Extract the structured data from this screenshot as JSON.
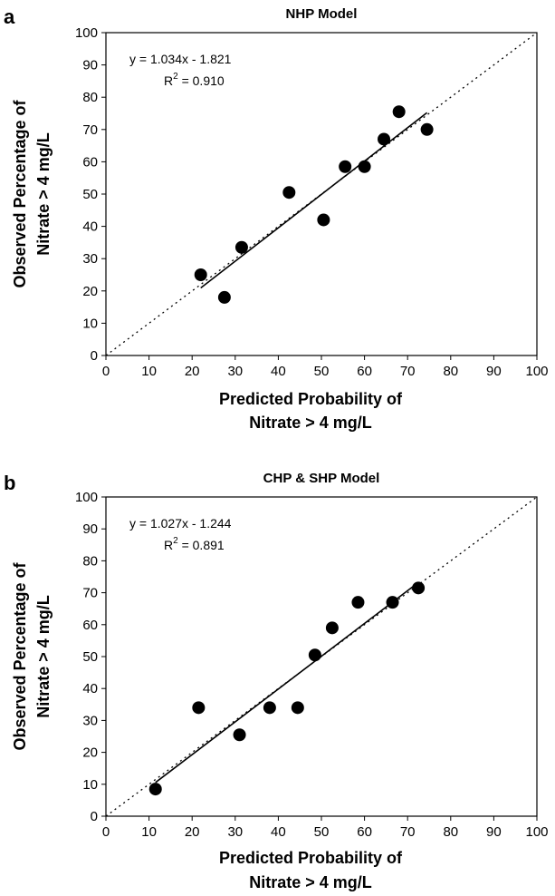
{
  "chart_data": [
    {
      "type": "scatter",
      "panel_label": "a",
      "title": "NHP Model",
      "xlabel": [
        "Predicted Probability  of",
        "Nitrate > 4 mg/L"
      ],
      "ylabel": [
        "Observed Percentage of",
        "Nitrate > 4 mg/L"
      ],
      "xlim": [
        0,
        100
      ],
      "ylim": [
        0,
        100
      ],
      "xticks": [
        "0",
        "10",
        "20",
        "30",
        "40",
        "50",
        "60",
        "70",
        "80",
        "90",
        "100"
      ],
      "yticks": [
        "0",
        "10",
        "20",
        "30",
        "40",
        "50",
        "60",
        "70",
        "80",
        "90",
        "100"
      ],
      "grid": false,
      "equation": "y = 1.034x - 1.821",
      "r2_label": "R",
      "r2_sup": "2",
      "r2_value": " = 0.910",
      "points": [
        {
          "x": 22,
          "y": 25
        },
        {
          "x": 27.5,
          "y": 18
        },
        {
          "x": 31.5,
          "y": 33.5
        },
        {
          "x": 42.5,
          "y": 50.5
        },
        {
          "x": 50.5,
          "y": 42
        },
        {
          "x": 55.5,
          "y": 58.5
        },
        {
          "x": 60,
          "y": 58.5
        },
        {
          "x": 64.5,
          "y": 67
        },
        {
          "x": 68,
          "y": 75.5
        },
        {
          "x": 74.5,
          "y": 70
        }
      ],
      "trendline": {
        "slope": 1.034,
        "intercept": -1.821,
        "x_range": [
          22,
          74.5
        ]
      },
      "reference_line": {
        "x_range": [
          0,
          100
        ]
      }
    },
    {
      "type": "scatter",
      "panel_label": "b",
      "title": "CHP & SHP Model",
      "xlabel": [
        "Predicted Probability  of",
        "Nitrate > 4 mg/L"
      ],
      "ylabel": [
        "Observed Percentage of",
        "Nitrate > 4 mg/L"
      ],
      "xlim": [
        0,
        100
      ],
      "ylim": [
        0,
        100
      ],
      "xticks": [
        "0",
        "10",
        "20",
        "30",
        "40",
        "50",
        "60",
        "70",
        "80",
        "90",
        "100"
      ],
      "yticks": [
        "0",
        "10",
        "20",
        "30",
        "40",
        "50",
        "60",
        "70",
        "80",
        "90",
        "100"
      ],
      "grid": false,
      "equation": "y = 1.027x - 1.244",
      "r2_label": "R",
      "r2_sup": "2",
      "r2_value": " = 0.891",
      "points": [
        {
          "x": 11.5,
          "y": 8.5
        },
        {
          "x": 21.5,
          "y": 34
        },
        {
          "x": 31,
          "y": 25.5
        },
        {
          "x": 38,
          "y": 34
        },
        {
          "x": 44.5,
          "y": 34
        },
        {
          "x": 48.5,
          "y": 50.5
        },
        {
          "x": 52.5,
          "y": 59
        },
        {
          "x": 58.5,
          "y": 67
        },
        {
          "x": 66.5,
          "y": 67
        },
        {
          "x": 72.5,
          "y": 71.5
        }
      ],
      "trendline": {
        "slope": 1.027,
        "intercept": -1.244,
        "x_range": [
          11.5,
          72.5
        ]
      },
      "reference_line": {
        "x_range": [
          0,
          100
        ]
      }
    }
  ]
}
